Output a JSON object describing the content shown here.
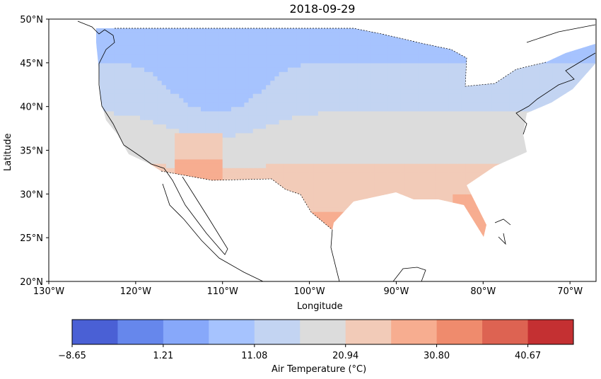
{
  "chart_data": {
    "type": "heatmap",
    "title": "2018-09-29",
    "xlabel": "Longitude",
    "ylabel": "Latitude",
    "x_ticks": [
      "130°W",
      "120°W",
      "110°W",
      "100°W",
      "90°W",
      "80°W",
      "70°W"
    ],
    "y_ticks": [
      "50°N",
      "45°N",
      "40°N",
      "35°N",
      "30°N",
      "25°N",
      "20°N"
    ],
    "x_range": [
      -130,
      -67
    ],
    "y_range": [
      20,
      50
    ],
    "colorbar": {
      "label": "Air Temperature (°C)",
      "tick_labels": [
        "−8.65",
        "1.21",
        "11.08",
        "20.94",
        "30.80",
        "40.67"
      ],
      "levels": [
        -8.65,
        -3.72,
        1.21,
        6.15,
        11.08,
        16.01,
        20.94,
        25.87,
        30.8,
        35.74,
        40.67,
        45.6
      ],
      "colors": [
        "#4a60d5",
        "#6687ec",
        "#87a8fa",
        "#a6c3fe",
        "#c3d4f2",
        "#dcdcdc",
        "#f2cbb8",
        "#f7ad90",
        "#ef8b6d",
        "#dd6352",
        "#c43032"
      ]
    }
  }
}
